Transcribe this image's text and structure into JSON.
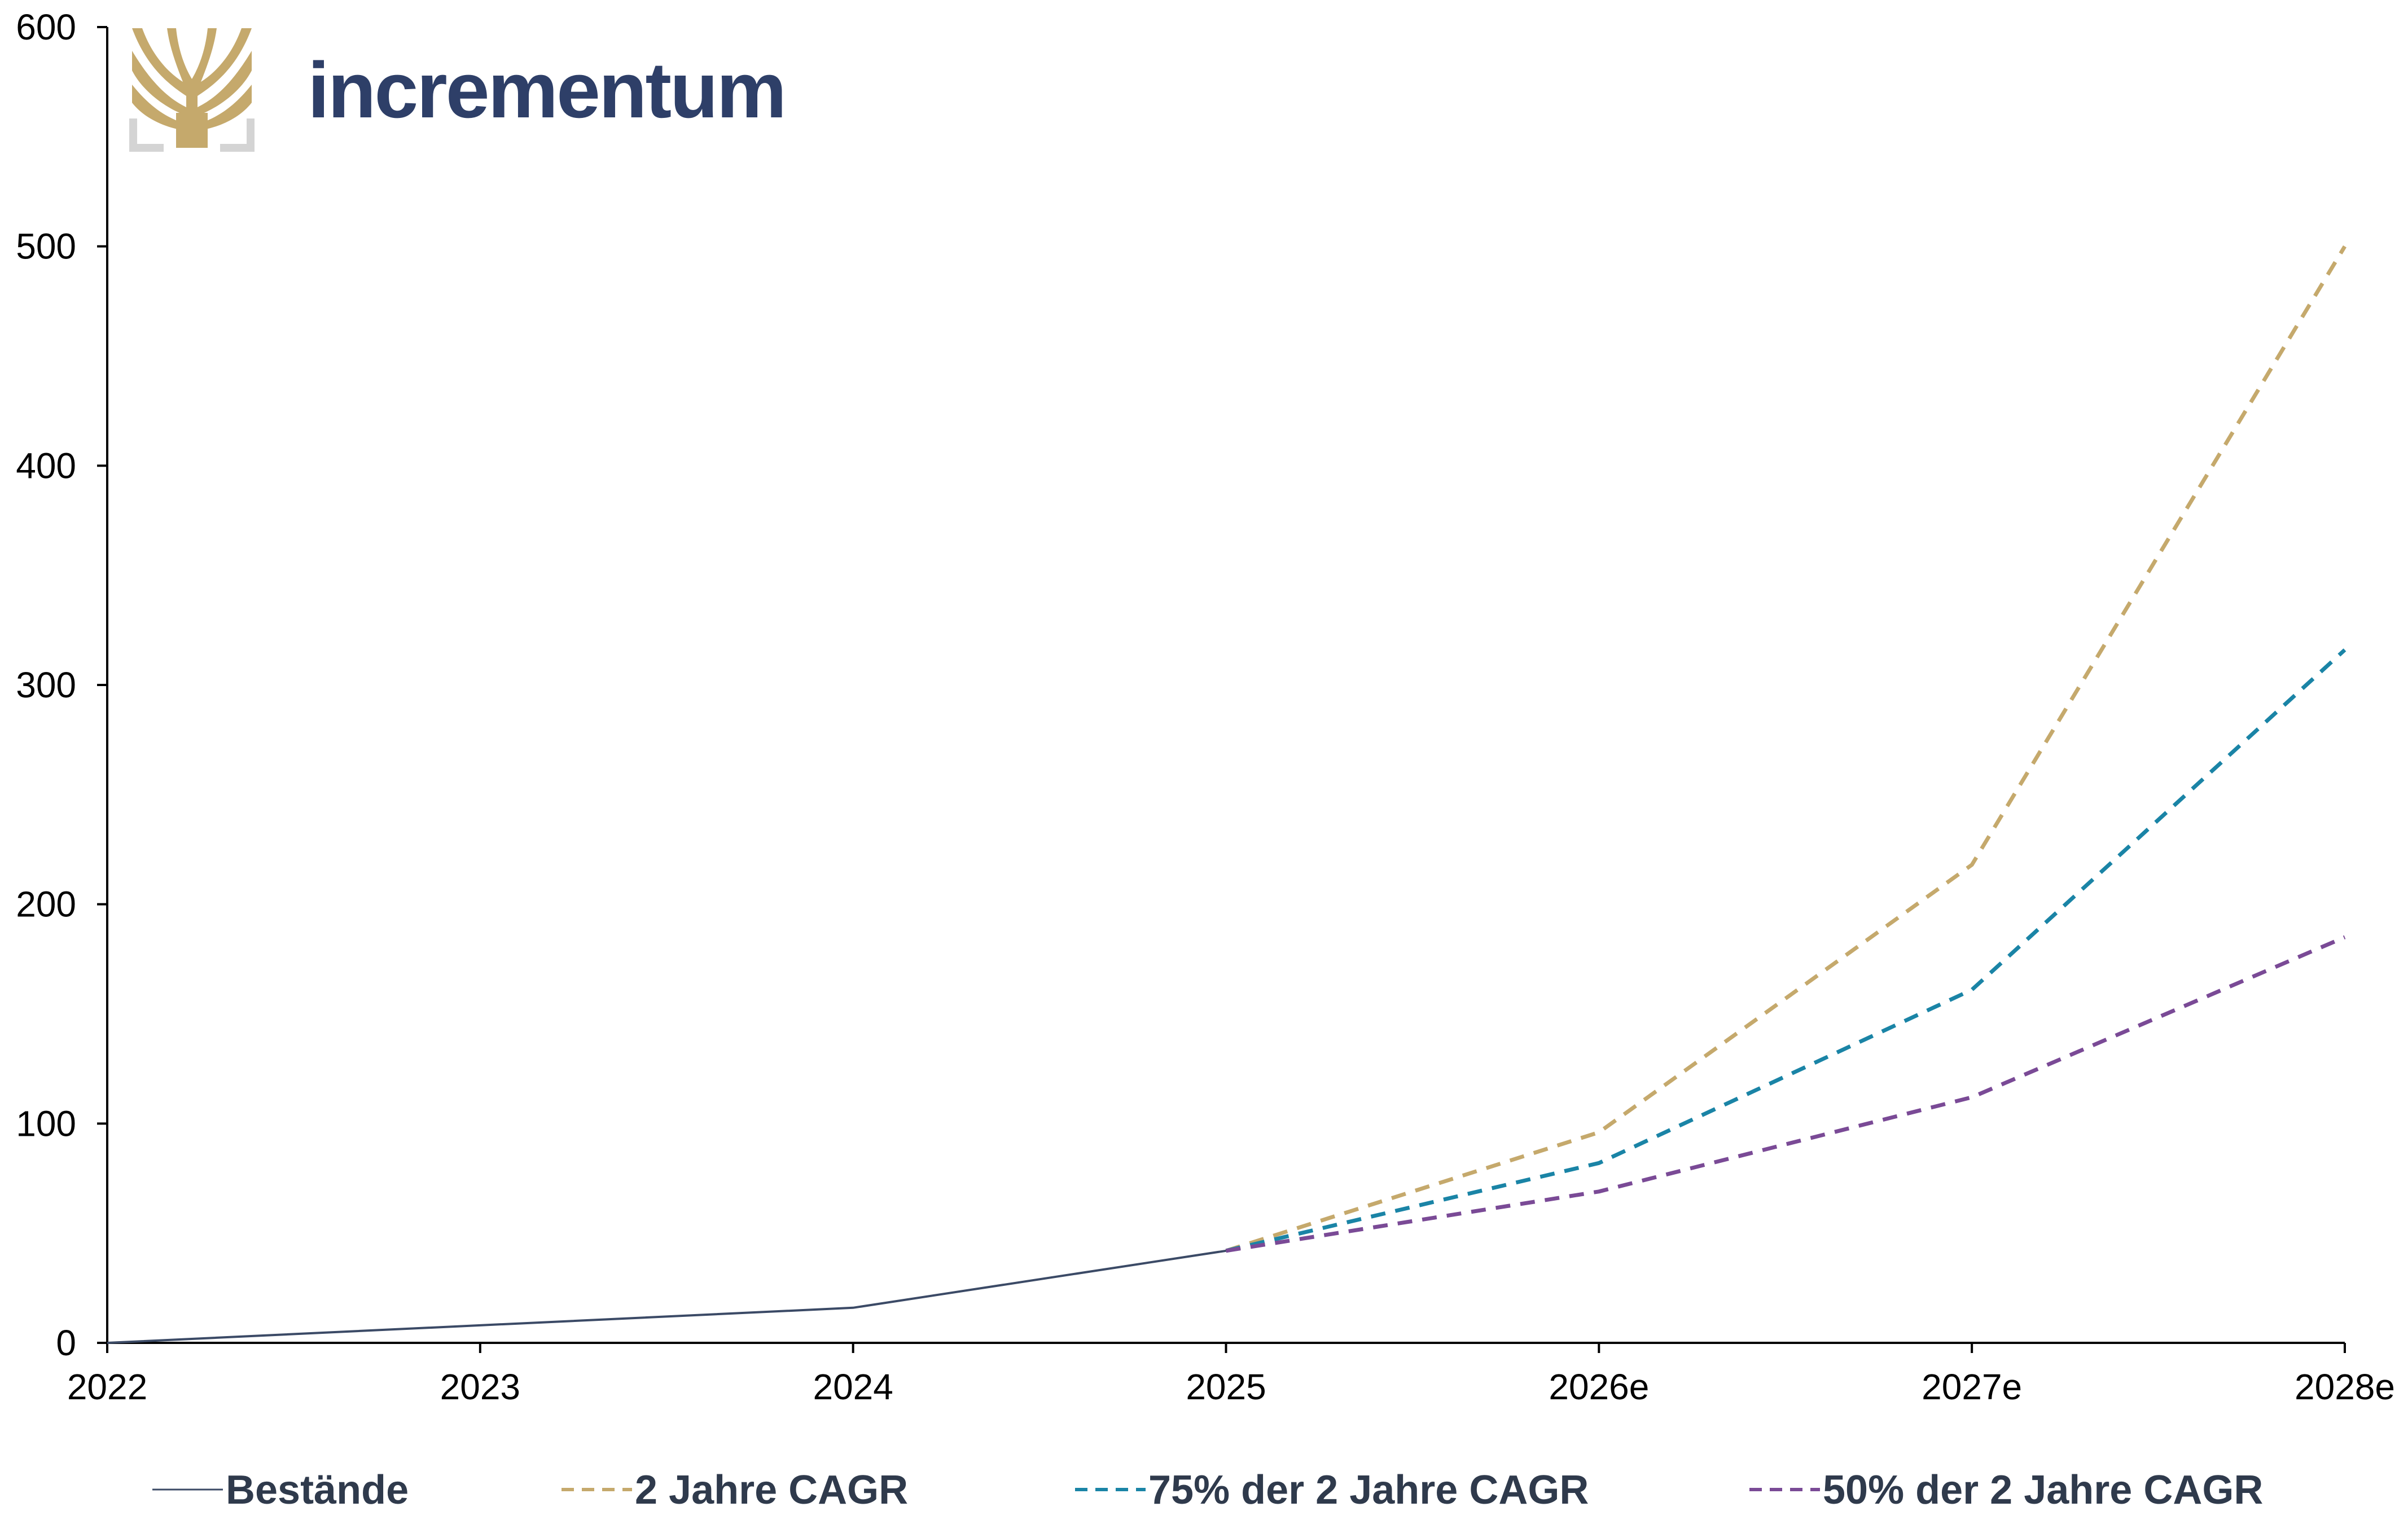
{
  "brand": {
    "name": "incrementum",
    "logo_icon": "tree-icon",
    "logo_color": "#c5a96c",
    "text_color": "#2e3f68"
  },
  "chart_data": {
    "type": "line",
    "title": "",
    "xlabel": "",
    "ylabel": "",
    "categories": [
      "2022",
      "2023",
      "2024",
      "2025",
      "2026e",
      "2027e",
      "2028e"
    ],
    "ylim": [
      0,
      600
    ],
    "yticks": [
      0,
      100,
      200,
      300,
      400,
      500,
      600
    ],
    "grid": false,
    "legend_position": "bottom",
    "series": [
      {
        "name": "Bestände",
        "style": "solid",
        "color": "#3b4a66",
        "values": [
          0,
          8,
          16,
          42,
          null,
          null,
          null
        ]
      },
      {
        "name": "2 Jahre CAGR",
        "style": "dashed",
        "color": "#c5a96c",
        "values": [
          null,
          null,
          null,
          42,
          96,
          218,
          500
        ]
      },
      {
        "name": "75% der 2 Jahre CAGR",
        "style": "dashed",
        "color": "#1a84a6",
        "values": [
          null,
          null,
          null,
          42,
          82,
          161,
          316
        ]
      },
      {
        "name": "50% der 2 Jahre CAGR",
        "style": "dashed",
        "color": "#7a4a96",
        "values": [
          null,
          null,
          null,
          42,
          69,
          112,
          185
        ]
      }
    ]
  }
}
